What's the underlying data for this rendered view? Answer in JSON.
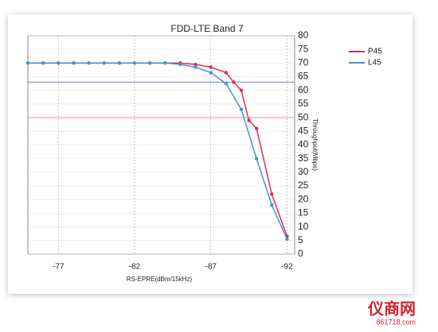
{
  "chart_data": {
    "type": "line",
    "title": "FDD-LTE Band 7",
    "x_label": "RS-EPRE(dBm/15kHz)",
    "y_label": "Throughput(Mbps)",
    "xlim": [
      -75,
      -92.5
    ],
    "xticks": [
      -77,
      -82,
      -87,
      -92
    ],
    "ylim": [
      0,
      80
    ],
    "yticks": [
      0,
      5,
      10,
      15,
      20,
      25,
      30,
      35,
      40,
      45,
      50,
      55,
      60,
      65,
      70,
      75,
      80
    ],
    "y_axis_side": "right",
    "grid": true,
    "legend": "upper right",
    "hlines": [
      {
        "value": 63,
        "color": "#8c8cd0"
      },
      {
        "value": 50,
        "color": "#e8a8b8"
      }
    ],
    "series": [
      {
        "name": "P45",
        "color": "#d9304a",
        "x": [
          -75,
          -76,
          -77,
          -78,
          -79,
          -80,
          -81,
          -82,
          -83,
          -84,
          -85,
          -86,
          -87,
          -88,
          -88.5,
          -89,
          -89.5,
          -90,
          -91,
          -92
        ],
        "values": [
          70,
          70,
          70,
          70,
          70,
          70,
          70,
          70,
          70,
          70,
          70,
          69.5,
          68.5,
          66.5,
          63,
          60,
          49,
          46,
          22,
          6.5
        ]
      },
      {
        "name": "L45",
        "color": "#4a90d0",
        "x": [
          -75,
          -76,
          -77,
          -78,
          -79,
          -80,
          -81,
          -82,
          -83,
          -84,
          -85,
          -86,
          -87,
          -88,
          -89,
          -90,
          -91,
          -92
        ],
        "values": [
          70,
          70,
          70,
          70,
          70,
          70,
          70,
          70,
          70,
          70,
          69.5,
          68.5,
          66.5,
          62.5,
          53,
          35,
          18,
          5.5
        ]
      }
    ]
  },
  "watermark": {
    "name": "仪商网",
    "url": "861718.com"
  }
}
